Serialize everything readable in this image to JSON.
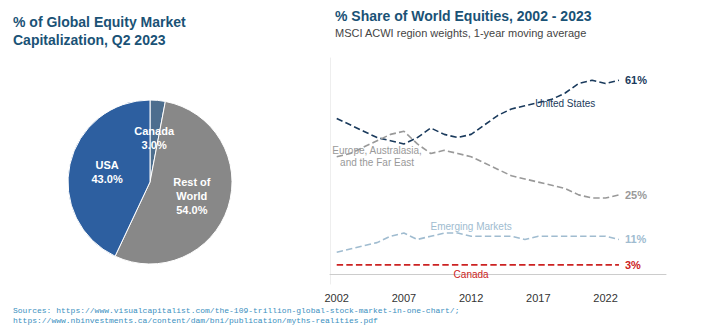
{
  "chart_data": [
    {
      "type": "pie",
      "title": "% of Global Equity Market\nCapitalization, Q2 2023",
      "categories": [
        "Canada",
        "Rest of\nWorld",
        "USA"
      ],
      "values": [
        3.0,
        54.0,
        43.0
      ],
      "value_labels": [
        "3.0%",
        "54.0%",
        "43.0%"
      ],
      "colors": [
        "#4d6e8e",
        "#888888",
        "#2d5fa0"
      ],
      "data_labels": true,
      "annotations": [
        "Sources: https://www.visualcapitalist.com/the-109-trillion-global-stock-market-in-one-chart/;\nhttps://www.nbinvestments.ca/content/dam/bni/publication/myths-realities.pdf"
      ]
    },
    {
      "type": "line",
      "title": "% Share of World Equities, 2002 - 2023",
      "subtitle": "MSCI ACWI region weights, 1-year moving average",
      "x": [
        2002,
        2003,
        2004,
        2005,
        2006,
        2007,
        2008,
        2009,
        2010,
        2011,
        2012,
        2013,
        2014,
        2015,
        2016,
        2017,
        2018,
        2019,
        2020,
        2021,
        2022,
        2023
      ],
      "series": [
        {
          "name": "United States",
          "color": "#1a3a5c",
          "line_style": "dashed",
          "values": [
            49,
            47,
            45,
            43,
            42,
            41,
            43,
            46,
            44,
            43,
            44,
            47,
            50,
            52,
            53,
            54,
            55,
            57,
            60,
            61,
            60,
            61
          ],
          "value_labels": [
            null,
            null,
            null,
            null,
            null,
            null,
            null,
            null,
            null,
            null,
            null,
            null,
            null,
            null,
            null,
            null,
            null,
            null,
            null,
            null,
            null,
            "61%"
          ]
        },
        {
          "name": "Europe, Australasia,\nand the Far East",
          "color": "#999999",
          "line_style": "dashed",
          "values": [
            37,
            38,
            40,
            42,
            44,
            45,
            41,
            38,
            39,
            38,
            37,
            35,
            33,
            31,
            30,
            29,
            28,
            27,
            25,
            24,
            24,
            25
          ],
          "value_labels": [
            null,
            null,
            null,
            null,
            null,
            null,
            null,
            null,
            null,
            null,
            null,
            null,
            null,
            null,
            null,
            null,
            null,
            null,
            null,
            null,
            null,
            "25%"
          ]
        },
        {
          "name": "Emerging Markets",
          "color": "#a0bcd0",
          "line_style": "dashed",
          "values": [
            7,
            8,
            9,
            10,
            12,
            13,
            11,
            12,
            13,
            13,
            12,
            12,
            12,
            12,
            11,
            12,
            12,
            12,
            12,
            12,
            12,
            11
          ],
          "value_labels": [
            null,
            null,
            null,
            null,
            null,
            null,
            null,
            null,
            null,
            null,
            null,
            null,
            null,
            null,
            null,
            null,
            null,
            null,
            null,
            null,
            null,
            "11%"
          ]
        },
        {
          "name": "Canada",
          "color": "#cc2222",
          "line_style": "dashed",
          "values": [
            3,
            3,
            3,
            3,
            3,
            3,
            3,
            3,
            3,
            3,
            3,
            3,
            3,
            3,
            3,
            3,
            3,
            3,
            3,
            3,
            3,
            3
          ],
          "value_labels": [
            null,
            null,
            null,
            null,
            null,
            null,
            null,
            null,
            null,
            null,
            null,
            null,
            null,
            null,
            null,
            null,
            null,
            null,
            null,
            null,
            null,
            "3%"
          ]
        }
      ],
      "xlim": [
        2001.5,
        2026.5
      ],
      "xticks": [
        2002,
        2007,
        2012,
        2017,
        2022
      ],
      "ylim": [
        -3,
        68
      ],
      "tick_labels": "x",
      "grid": false,
      "data_labels": true
    }
  ]
}
